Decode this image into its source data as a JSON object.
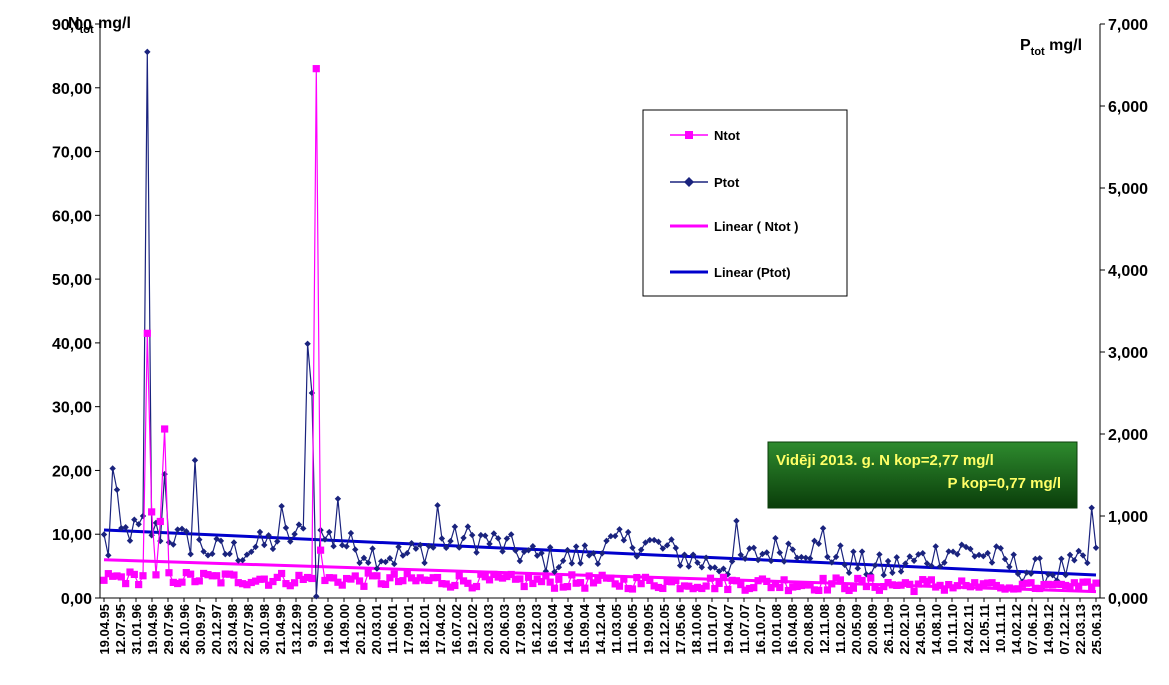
{
  "chart_data": {
    "type": "line",
    "y_left_label_main": "N",
    "y_left_label_sub": "tot",
    "y_left_label_unit": " mg/l",
    "y_right_label_main": "P",
    "y_right_label_sub": "tot",
    "y_right_label_unit": " mg/l",
    "y_left_ticks": [
      "0,00",
      "10,00",
      "20,00",
      "30,00",
      "40,00",
      "50,00",
      "60,00",
      "70,00",
      "80,00",
      "90,00"
    ],
    "y_right_ticks": [
      "0,000",
      "1,000",
      "2,000",
      "3,000",
      "4,000",
      "5,000",
      "6,000",
      "7,000"
    ],
    "ylim_left": [
      0,
      90
    ],
    "ylim_right": [
      0,
      7
    ],
    "x_tick_labels": [
      "19.04.95",
      "12.07.95",
      "31.01.96",
      "19.04.96",
      "29.07.96",
      "26.10.96",
      "30.09.97",
      "20.12.97",
      "23.04.98",
      "22.07.98",
      "30.10.98",
      "21.04.99",
      "13.12.99",
      "9.03.00",
      "19.06.00",
      "14.09.00",
      "20.12.00",
      "20.03.01",
      "11.06.01",
      "17.09.01",
      "18.12.01",
      "17.04.02",
      "16.07.02",
      "19.12.02",
      "20.03.03",
      "20.06.03",
      "17.09.03",
      "16.12.03",
      "16.03.04",
      "14.06.04",
      "15.09.04",
      "14.12.04",
      "11.03.05",
      "11.06.05",
      "19.09.05",
      "12.12.05",
      "17.05.06",
      "18.10.06",
      "11.01.07",
      "19.04.07",
      "11.07.07",
      "16.10.07",
      "10.01.08",
      "16.04.08",
      "20.08.08",
      "12.11.08",
      "11.02.09",
      "20.05.09",
      "20.08.09",
      "26.11.09",
      "22.02.10",
      "24.05.10",
      "14.08.10",
      "10.11.10",
      "24.02.11",
      "12.05.11",
      "10.11.11",
      "14.02.12",
      "07.06.12",
      "14.09.12",
      "07.12.12",
      "22.03.13",
      "25.06.13"
    ],
    "n_points": 230,
    "series": [
      {
        "name": "Ntot",
        "axis": "left",
        "color": "#ff00ff",
        "marker": "square",
        "spikes": [
          {
            "i": 10,
            "v": 41.5
          },
          {
            "i": 11,
            "v": 13.5
          },
          {
            "i": 13,
            "v": 12.0
          },
          {
            "i": 14,
            "v": 26.5
          },
          {
            "i": 49,
            "v": 83.0
          },
          {
            "i": 50,
            "v": 7.5
          }
        ]
      },
      {
        "name": "Ptot",
        "axis": "right",
        "color": "#1a237e",
        "marker": "diamond",
        "spikes": [
          {
            "i": 1,
            "v": 0.52
          },
          {
            "i": 2,
            "v": 1.58
          },
          {
            "i": 3,
            "v": 1.32
          },
          {
            "i": 9,
            "v": 1.0
          },
          {
            "i": 10,
            "v": 6.66
          },
          {
            "i": 14,
            "v": 1.51
          },
          {
            "i": 21,
            "v": 1.68
          },
          {
            "i": 41,
            "v": 1.12
          },
          {
            "i": 47,
            "v": 3.1
          },
          {
            "i": 48,
            "v": 2.5
          },
          {
            "i": 49,
            "v": 0.02
          },
          {
            "i": 54,
            "v": 1.21
          },
          {
            "i": 77,
            "v": 1.13
          },
          {
            "i": 146,
            "v": 0.94
          },
          {
            "i": 166,
            "v": 0.85
          },
          {
            "i": 228,
            "v": 1.1
          }
        ]
      }
    ],
    "trends": [
      {
        "name": "Linear ( Ntot )",
        "axis": "left",
        "color": "#ff00ff",
        "start": 6.0,
        "end": 1.0
      },
      {
        "name": "Linear (Ptot)",
        "axis": "right",
        "color": "#0000cc",
        "start": 0.83,
        "end": 0.28
      }
    ]
  },
  "legend": {
    "items": [
      {
        "label": "Ntot",
        "color": "#ff00ff",
        "marker": "square"
      },
      {
        "label": "Ptot",
        "color": "#1a237e",
        "marker": "diamond"
      },
      {
        "label": "Linear ( Ntot )",
        "color": "#ff00ff",
        "marker": "none"
      },
      {
        "label": "Linear (Ptot)",
        "color": "#0000cc",
        "marker": "none"
      }
    ]
  },
  "annotation": {
    "line1": "Vidēji 2013. g. N kop=2,77 mg/l",
    "line2": "P kop=0,77 mg/l",
    "bg_top": "#2e8b2e",
    "bg_bottom": "#0a3d0a",
    "text_color": "#ffff66"
  }
}
